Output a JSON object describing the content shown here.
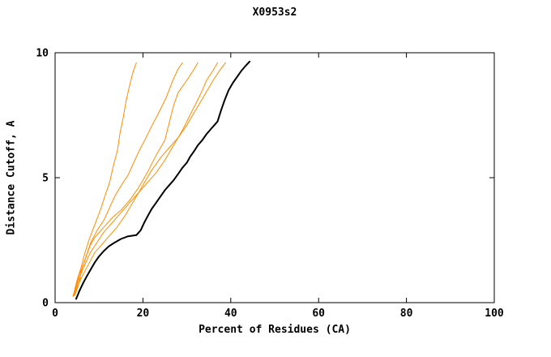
{
  "chart_data": {
    "type": "line",
    "title": "X0953s2",
    "xlabel": "Percent of Residues (CA)",
    "ylabel": "Distance Cutoff, A",
    "xlim": [
      0,
      100
    ],
    "ylim": [
      0,
      10
    ],
    "xticks": [
      0,
      20,
      40,
      60,
      80,
      100
    ],
    "yticks": [
      0,
      5,
      10
    ],
    "grid": false,
    "legend": "none",
    "frame_color": "#000000",
    "background": "#ffffff",
    "series": [
      {
        "name": "orange-curve-1",
        "color": "#ff8c00",
        "width": 1,
        "points": [
          [
            4.1,
            0.26
          ],
          [
            5.0,
            0.9
          ],
          [
            5.9,
            1.4
          ],
          [
            6.8,
            2.0
          ],
          [
            7.7,
            2.5
          ],
          [
            9.2,
            3.2
          ],
          [
            10.5,
            3.8
          ],
          [
            11.4,
            4.3
          ],
          [
            12.4,
            4.8
          ],
          [
            13.3,
            5.5
          ],
          [
            14.2,
            6.1
          ],
          [
            14.8,
            6.8
          ],
          [
            15.5,
            7.4
          ],
          [
            16.2,
            8.1
          ],
          [
            17.0,
            8.7
          ],
          [
            17.7,
            9.2
          ],
          [
            18.5,
            9.6
          ]
        ]
      },
      {
        "name": "orange-curve-2",
        "color": "#ff8c00",
        "width": 1,
        "points": [
          [
            4.1,
            0.26
          ],
          [
            5.5,
            1.1
          ],
          [
            6.8,
            1.7
          ],
          [
            8.1,
            2.4
          ],
          [
            9.6,
            2.9
          ],
          [
            11.1,
            3.3
          ],
          [
            12.4,
            3.8
          ],
          [
            13.7,
            4.3
          ],
          [
            15.1,
            4.7
          ],
          [
            16.6,
            5.1
          ],
          [
            17.9,
            5.6
          ],
          [
            19.2,
            6.1
          ],
          [
            20.7,
            6.6
          ],
          [
            22.1,
            7.1
          ],
          [
            23.6,
            7.6
          ],
          [
            25.3,
            8.2
          ],
          [
            26.8,
            8.9
          ],
          [
            28.0,
            9.35
          ],
          [
            29.0,
            9.6
          ]
        ]
      },
      {
        "name": "orange-curve-3",
        "color": "#ff8c00",
        "width": 1,
        "points": [
          [
            4.5,
            0.3
          ],
          [
            5.5,
            0.8
          ],
          [
            6.0,
            1.3
          ],
          [
            7.0,
            1.8
          ],
          [
            8.0,
            2.3
          ],
          [
            9.0,
            2.6
          ],
          [
            11.0,
            3.0
          ],
          [
            13.0,
            3.4
          ],
          [
            15.0,
            3.7
          ],
          [
            17.0,
            4.1
          ],
          [
            19.0,
            4.6
          ],
          [
            21.0,
            5.2
          ],
          [
            23.0,
            5.9
          ],
          [
            25.0,
            6.5
          ],
          [
            26.0,
            7.2
          ],
          [
            27.0,
            7.9
          ],
          [
            28.0,
            8.4
          ],
          [
            30.0,
            8.9
          ],
          [
            31.5,
            9.3
          ],
          [
            32.5,
            9.6
          ]
        ]
      },
      {
        "name": "orange-curve-4",
        "color": "#ff8c00",
        "width": 1,
        "points": [
          [
            4.3,
            0.3
          ],
          [
            5.0,
            0.7
          ],
          [
            6.0,
            1.2
          ],
          [
            7.0,
            1.6
          ],
          [
            8.0,
            2.0
          ],
          [
            9.5,
            2.4
          ],
          [
            11.0,
            2.8
          ],
          [
            13.0,
            3.2
          ],
          [
            15.0,
            3.6
          ],
          [
            17.0,
            4.0
          ],
          [
            19.0,
            4.4
          ],
          [
            21.0,
            4.8
          ],
          [
            23.0,
            5.2
          ],
          [
            25.0,
            5.7
          ],
          [
            27.0,
            6.3
          ],
          [
            29.0,
            6.9
          ],
          [
            31.0,
            7.6
          ],
          [
            33.0,
            8.3
          ],
          [
            34.5,
            8.9
          ],
          [
            36.0,
            9.3
          ],
          [
            37.0,
            9.6
          ]
        ]
      },
      {
        "name": "orange-curve-5",
        "color": "#ff8c00",
        "width": 1,
        "points": [
          [
            4.2,
            0.25
          ],
          [
            5.0,
            0.6
          ],
          [
            6.0,
            1.0
          ],
          [
            7.5,
            1.5
          ],
          [
            9.0,
            2.0
          ],
          [
            10.5,
            2.3
          ],
          [
            12.0,
            2.6
          ],
          [
            14.0,
            3.0
          ],
          [
            16.0,
            3.5
          ],
          [
            18.0,
            4.1
          ],
          [
            20.0,
            4.7
          ],
          [
            22.0,
            5.3
          ],
          [
            24.0,
            5.8
          ],
          [
            26.0,
            6.2
          ],
          [
            28.0,
            6.6
          ],
          [
            30.0,
            7.1
          ],
          [
            32.0,
            7.7
          ],
          [
            34.0,
            8.3
          ],
          [
            36.0,
            8.9
          ],
          [
            37.5,
            9.3
          ],
          [
            38.8,
            9.6
          ]
        ]
      },
      {
        "name": "black-curve",
        "color": "#000000",
        "width": 2,
        "points": [
          [
            4.8,
            0.15
          ],
          [
            5.5,
            0.45
          ],
          [
            6.3,
            0.75
          ],
          [
            7.2,
            1.05
          ],
          [
            8.0,
            1.3
          ],
          [
            9.0,
            1.6
          ],
          [
            10.0,
            1.85
          ],
          [
            11.0,
            2.05
          ],
          [
            12.2,
            2.25
          ],
          [
            13.5,
            2.4
          ],
          [
            15.0,
            2.55
          ],
          [
            16.5,
            2.65
          ],
          [
            18.5,
            2.7
          ],
          [
            19.5,
            2.9
          ],
          [
            20.3,
            3.2
          ],
          [
            21.2,
            3.5
          ],
          [
            22.0,
            3.75
          ],
          [
            23.0,
            4.0
          ],
          [
            24.0,
            4.25
          ],
          [
            25.0,
            4.5
          ],
          [
            26.0,
            4.7
          ],
          [
            27.0,
            4.9
          ],
          [
            28.0,
            5.15
          ],
          [
            29.0,
            5.4
          ],
          [
            30.0,
            5.6
          ],
          [
            30.8,
            5.85
          ],
          [
            31.6,
            6.05
          ],
          [
            32.5,
            6.3
          ],
          [
            33.5,
            6.5
          ],
          [
            34.5,
            6.75
          ],
          [
            35.5,
            6.95
          ],
          [
            36.5,
            7.15
          ],
          [
            37.0,
            7.25
          ],
          [
            37.8,
            7.7
          ],
          [
            38.6,
            8.1
          ],
          [
            39.5,
            8.5
          ],
          [
            40.5,
            8.8
          ],
          [
            41.5,
            9.05
          ],
          [
            42.5,
            9.3
          ],
          [
            43.5,
            9.5
          ],
          [
            44.3,
            9.65
          ]
        ]
      }
    ]
  }
}
